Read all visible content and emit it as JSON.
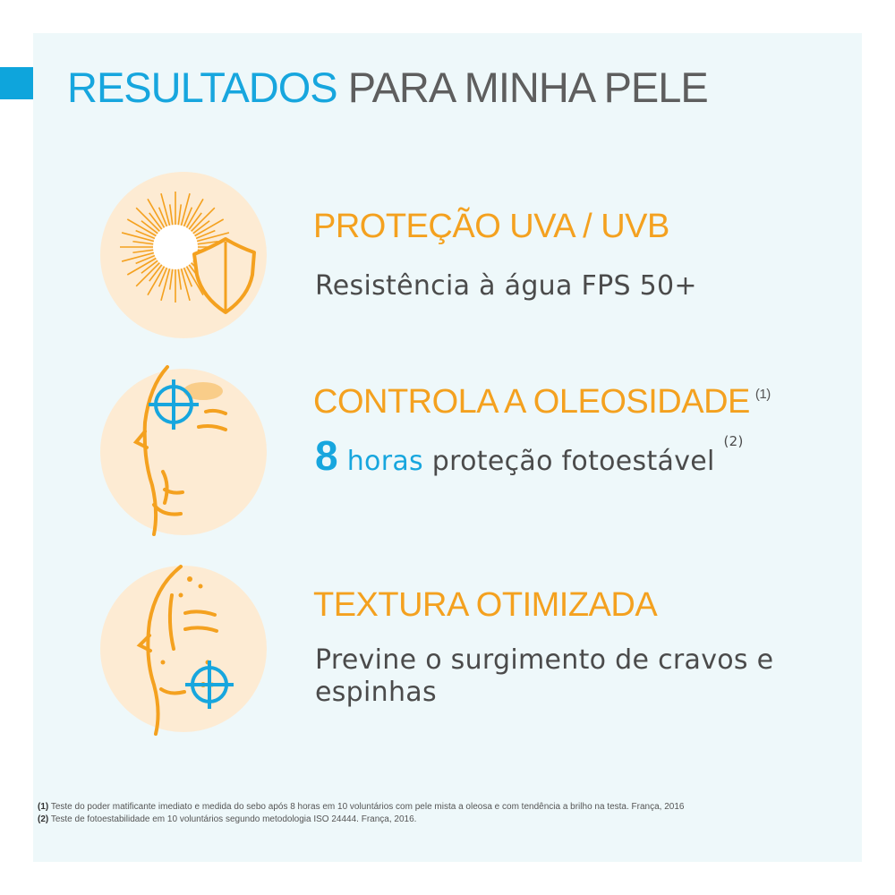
{
  "title": {
    "highlight": "RESULTADOS",
    "rest": " PARA MINHA PELE"
  },
  "colors": {
    "blue": "#17a6de",
    "orange": "#f4a11f",
    "circle": "#fdebd3",
    "panel": "#eef8fa"
  },
  "benefits": [
    {
      "icon": "sun-shield-icon",
      "heading": "PROTEÇÃO UVA / UVB",
      "text": "Resistência à água FPS 50+"
    },
    {
      "icon": "face-oil-control-icon",
      "heading": "CONTROLA A OLEOSIDADE",
      "heading_ref": "(1)",
      "number": "8",
      "unit": "horas",
      "text": "proteção fotoestável",
      "text_ref": "(2)"
    },
    {
      "icon": "face-texture-icon",
      "heading": "TEXTURA OTIMIZADA",
      "text_line1": "Previne o surgimento de cravos e",
      "text_line2": "espinhas"
    }
  ],
  "footnotes": [
    {
      "ref": "(1)",
      "text": " Teste do poder matificante imediato e medida do sebo após 8 horas em 10 voluntários com pele mista a oleosa e com tendência a brilho na testa. França, 2016"
    },
    {
      "ref": "(2)",
      "text": " Teste de fotoestabilidade em 10 voluntários segundo metodologia ISO 24444. França, 2016."
    }
  ]
}
